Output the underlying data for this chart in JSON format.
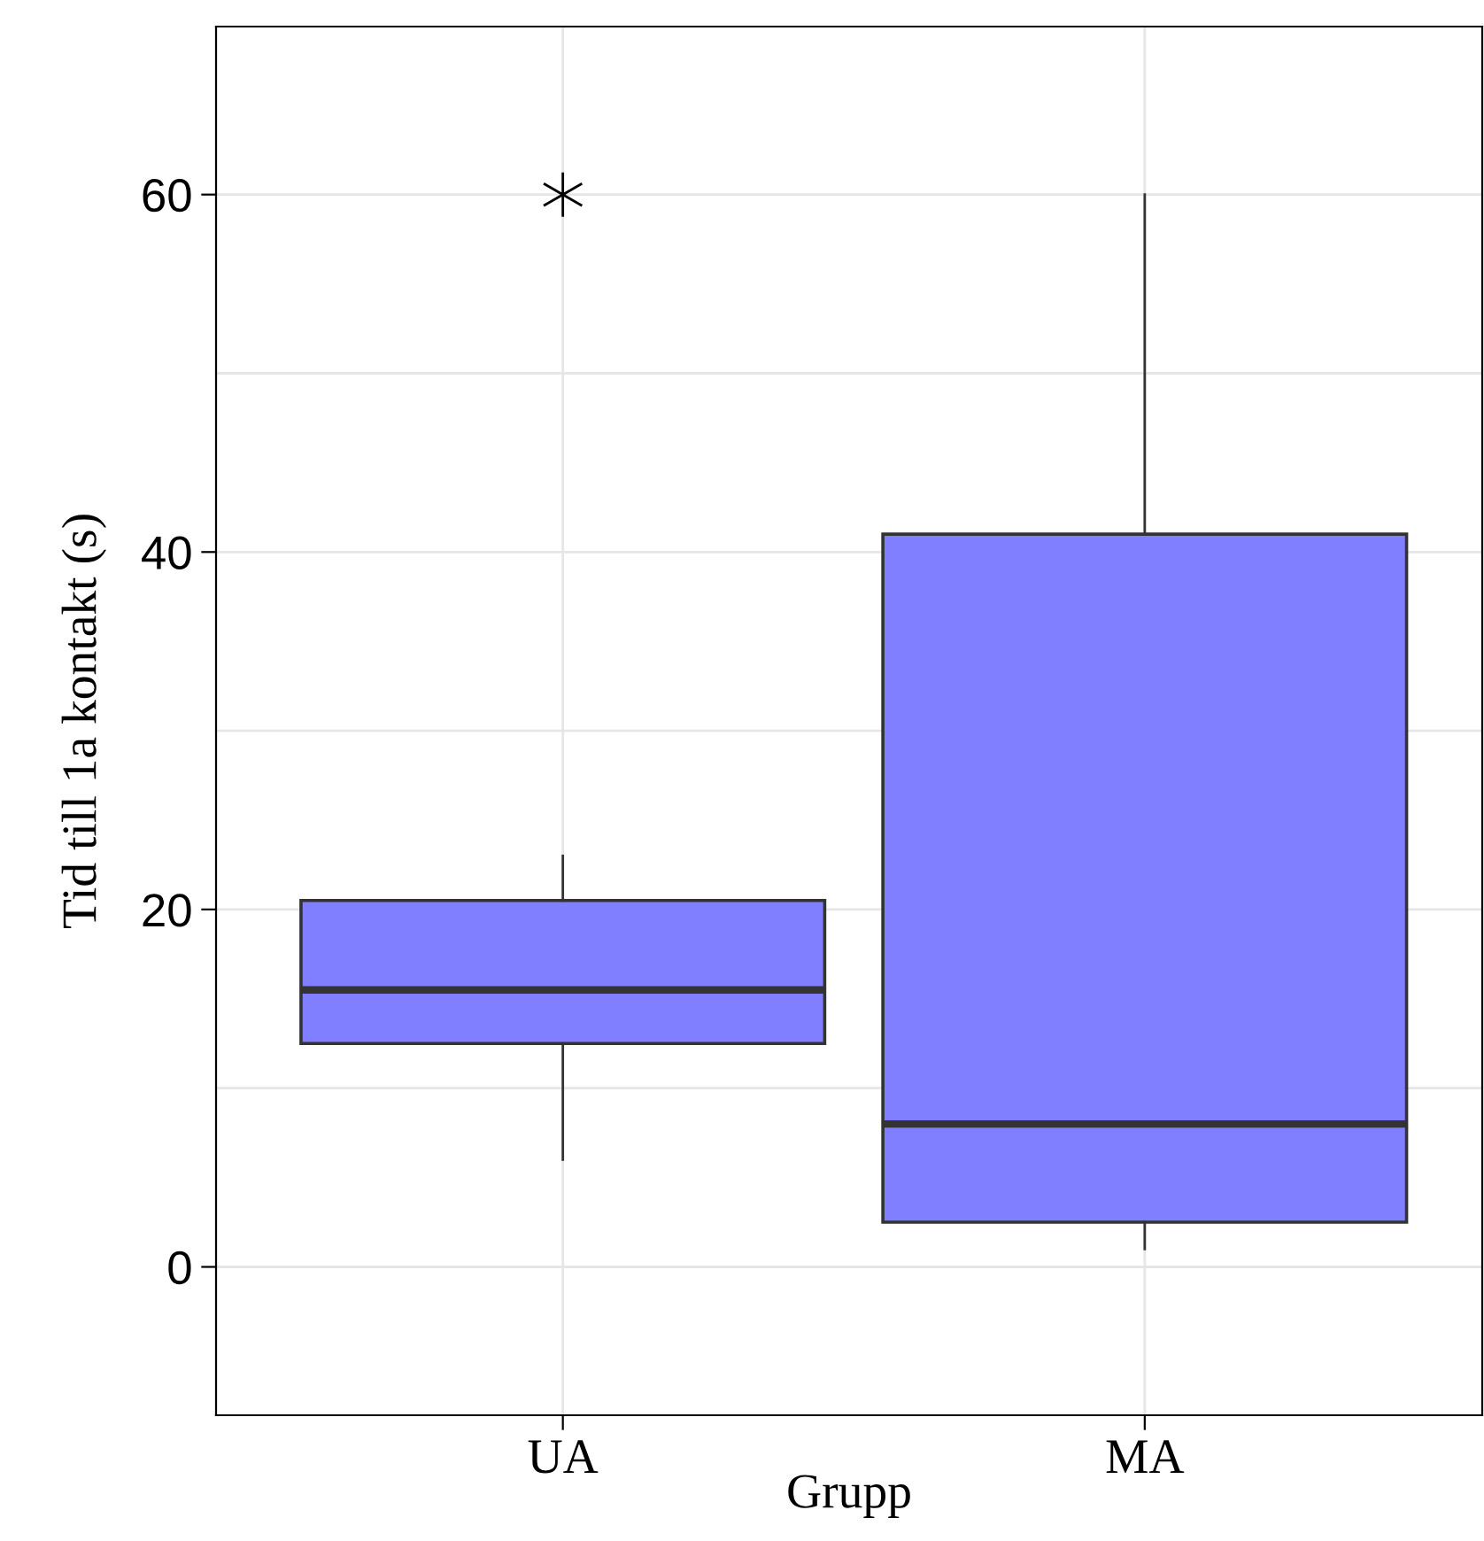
{
  "chart_data": {
    "type": "box",
    "xlabel": "Grupp",
    "ylabel": "Tid till 1a kontakt (s)",
    "categories": [
      "UA",
      "MA"
    ],
    "series": [
      {
        "color": "#7f7fff",
        "boxes": [
          {
            "low": 6,
            "q1": 12.5,
            "median": 15.5,
            "q3": 20.5,
            "high": 23,
            "outliers": [
              60
            ]
          },
          {
            "low": 1,
            "q1": 2.5,
            "median": 8,
            "q3": 41,
            "high": 60
          }
        ]
      }
    ],
    "ylim": [
      -8.3,
      69.4
    ],
    "yticks": [
      0,
      {
        "value": 10,
        "label": null
      },
      20,
      {
        "value": 30,
        "label": null
      },
      40,
      {
        "value": 50,
        "label": null
      },
      60
    ],
    "grid": true,
    "marker": "star"
  }
}
